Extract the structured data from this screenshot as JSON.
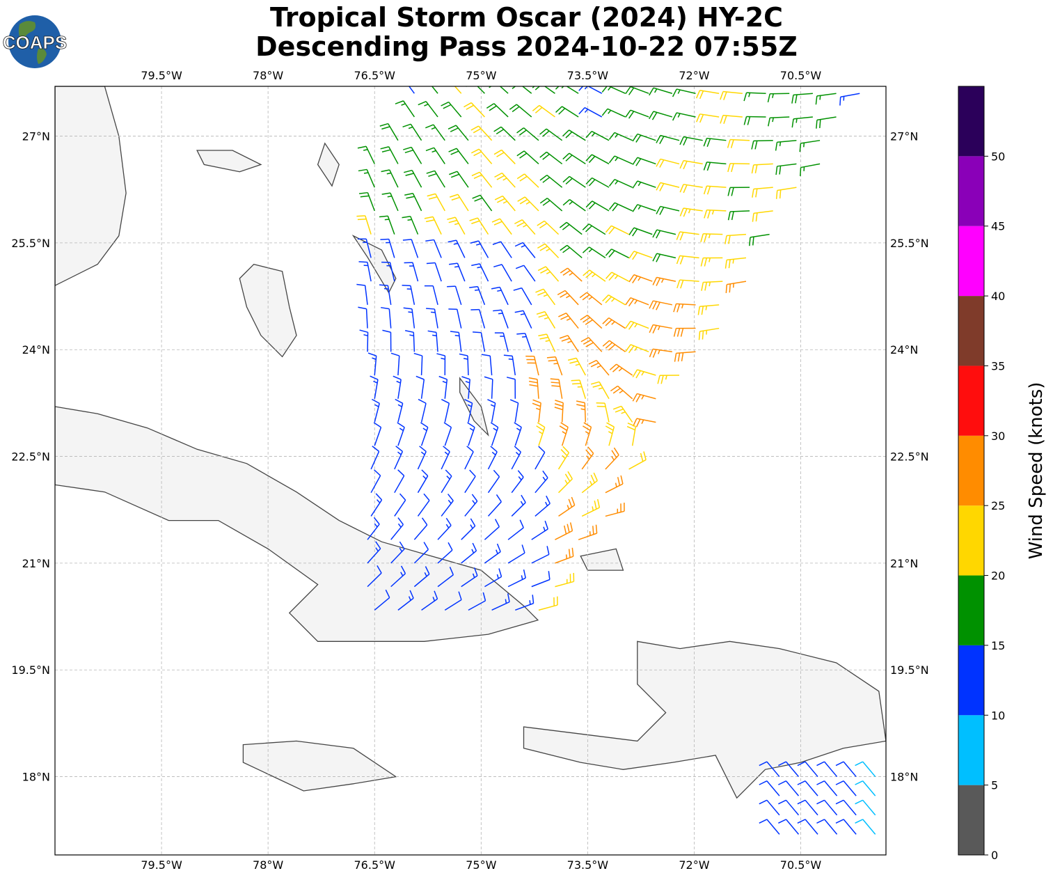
{
  "title": {
    "line1": "Tropical Storm Oscar (2024) HY-2C",
    "line2": "Descending Pass 2024-10-22 07:55Z"
  },
  "logo": {
    "text": "COAPS",
    "ocean_color": "#1f5fa8",
    "land_color": "#5a8a3a"
  },
  "map": {
    "lon_range": [
      -81.0,
      -69.3
    ],
    "lat_range": [
      16.9,
      27.7
    ],
    "lon_ticks": [
      {
        "value": -79.5,
        "label": "79.5°W"
      },
      {
        "value": -78.0,
        "label": "78°W"
      },
      {
        "value": -76.5,
        "label": "76.5°W"
      },
      {
        "value": -75.0,
        "label": "75°W"
      },
      {
        "value": -73.5,
        "label": "73.5°W"
      },
      {
        "value": -72.0,
        "label": "72°W"
      },
      {
        "value": -70.5,
        "label": "70.5°W"
      }
    ],
    "lat_ticks": [
      {
        "value": 27.0,
        "label": "27°N"
      },
      {
        "value": 25.5,
        "label": "25.5°N"
      },
      {
        "value": 24.0,
        "label": "24°N"
      },
      {
        "value": 22.5,
        "label": "22.5°N"
      },
      {
        "value": 21.0,
        "label": "21°N"
      },
      {
        "value": 19.5,
        "label": "19.5°N"
      },
      {
        "value": 18.0,
        "label": "18°N"
      }
    ],
    "grid": true,
    "coastline_color": "#444444",
    "land_shade_color": "#dcdcdc"
  },
  "colorbar": {
    "label": "Wind Speed (knots)",
    "bins": [
      {
        "min": 0,
        "max": 5,
        "color": "#595959"
      },
      {
        "min": 5,
        "max": 10,
        "color": "#00bfff"
      },
      {
        "min": 10,
        "max": 15,
        "color": "#0033ff"
      },
      {
        "min": 15,
        "max": 20,
        "color": "#009100"
      },
      {
        "min": 20,
        "max": 25,
        "color": "#ffd700"
      },
      {
        "min": 25,
        "max": 30,
        "color": "#ff8c00"
      },
      {
        "min": 30,
        "max": 35,
        "color": "#ff0d0d"
      },
      {
        "min": 35,
        "max": 40,
        "color": "#7f3b2a"
      },
      {
        "min": 40,
        "max": 45,
        "color": "#ff00ff"
      },
      {
        "min": 45,
        "max": 50,
        "color": "#8a00b8"
      },
      {
        "min": 50,
        "max": 55,
        "color": "#2b005a"
      }
    ],
    "tick_labels": [
      "0",
      "5",
      "10",
      "15",
      "20",
      "25",
      "30",
      "35",
      "40",
      "45",
      "50"
    ]
  }
}
